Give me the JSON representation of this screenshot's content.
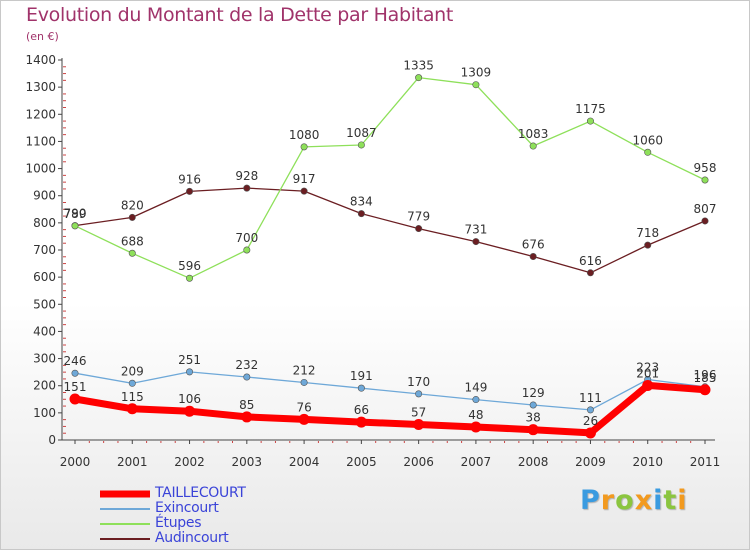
{
  "header": {
    "title": "Evolution du Montant de la Dette par Habitant",
    "subtitle": "(en €)"
  },
  "colors": {
    "title": "#a0336a",
    "axis": "#444444",
    "tick_marks": "#cc4444",
    "legend_text": "#3a43d8"
  },
  "logo": {
    "letters": [
      {
        "char": "P",
        "color": "#3a9be0"
      },
      {
        "char": "r",
        "color": "#f29a1f"
      },
      {
        "char": "o",
        "color": "#8bc53f"
      },
      {
        "char": "x",
        "color": "#f29a1f"
      },
      {
        "char": "i",
        "color": "#3a9be0"
      },
      {
        "char": "t",
        "color": "#8bc53f"
      },
      {
        "char": "i",
        "color": "#f29a1f"
      }
    ]
  },
  "chart_data": {
    "type": "line",
    "title": "Evolution du Montant de la Dette par Habitant",
    "subtitle": "(en €)",
    "x": [
      "2000",
      "2001",
      "2002",
      "2003",
      "2004",
      "2005",
      "2006",
      "2007",
      "2008",
      "2009",
      "2010",
      "2011"
    ],
    "ylim": [
      0,
      1400
    ],
    "yticks": [
      0,
      100,
      200,
      300,
      400,
      500,
      600,
      700,
      800,
      900,
      1000,
      1100,
      1200,
      1300,
      1400
    ],
    "grid": false,
    "legend_position": "bottom-left",
    "series": [
      {
        "name": "Audincourt",
        "color": "#6b1e22",
        "width": 1.3,
        "values": [
          790,
          820,
          916,
          928,
          917,
          834,
          779,
          731,
          676,
          616,
          718,
          807
        ]
      },
      {
        "name": "Étupes",
        "color": "#8ee05a",
        "width": 1.3,
        "values": [
          789,
          688,
          596,
          700,
          1080,
          1087,
          1335,
          1309,
          1083,
          1175,
          1060,
          958
        ]
      },
      {
        "name": "Exincourt",
        "color": "#6ea8d8",
        "width": 1.3,
        "values": [
          246,
          209,
          251,
          232,
          212,
          191,
          170,
          149,
          129,
          111,
          223,
          196
        ]
      },
      {
        "name": "TAILLECOURT",
        "color": "#ff0000",
        "width": 7,
        "values": [
          151,
          115,
          106,
          85,
          76,
          66,
          57,
          48,
          38,
          26,
          201,
          185
        ]
      }
    ],
    "point_labels": [
      {
        "series": "Audincourt",
        "labels": [
          "790",
          "820",
          "916",
          "928",
          "917",
          "834",
          "779",
          "731",
          "676",
          "616",
          "718",
          "807"
        ]
      },
      {
        "series": "Étupes",
        "labels": [
          "789",
          "688",
          "596",
          "700",
          "1080",
          "1087",
          "1335",
          "1309",
          "1083",
          "1175",
          "1060",
          "958"
        ]
      },
      {
        "series": "Exincourt",
        "labels": [
          "246",
          "209",
          "251",
          "232",
          "212",
          "191",
          "170",
          "149",
          "129",
          "111",
          "223",
          "196"
        ]
      },
      {
        "series": "TAILLECOURT",
        "labels": [
          "151",
          "115",
          "106",
          "85",
          "76",
          "66",
          "57",
          "48",
          "38",
          "26",
          "201",
          "185"
        ]
      }
    ]
  },
  "legend": [
    {
      "label": "TAILLECOURT",
      "color": "#ff0000",
      "thickness": 7
    },
    {
      "label": "Exincourt",
      "color": "#6ea8d8",
      "thickness": 2
    },
    {
      "label": "Étupes",
      "color": "#8ee05a",
      "thickness": 2
    },
    {
      "label": "Audincourt",
      "color": "#6b1e22",
      "thickness": 2
    }
  ]
}
